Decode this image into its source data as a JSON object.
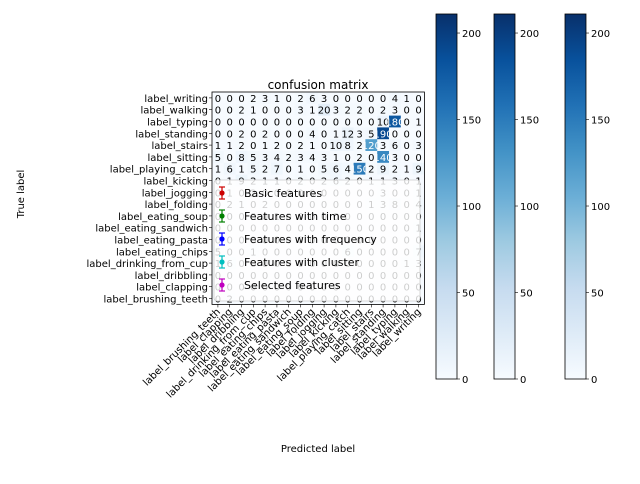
{
  "chart_data": {
    "type": "heatmap",
    "title": "confusion matrix",
    "xlabel": "Predicted label",
    "ylabel": "True label",
    "labels": [
      "label_brushing_teeth",
      "label_clapping",
      "label_dribbling",
      "label_drinking_from_cup",
      "label_eating_chips",
      "label_eating_pasta",
      "label_eating_sandwich",
      "label_eating_soup",
      "label_folding",
      "label_jogging",
      "label_kicking",
      "label_playing_catch",
      "label_sitting",
      "label_stairs",
      "label_standing",
      "label_typing",
      "label_walking",
      "label_writing"
    ],
    "matrix_rows_top_to_bottom": [
      [
        0,
        0,
        0,
        2,
        3,
        1,
        0,
        2,
        6,
        3,
        0,
        0,
        0,
        0,
        0,
        4,
        1,
        0
      ],
      [
        0,
        0,
        2,
        1,
        0,
        0,
        0,
        3,
        1,
        20,
        3,
        2,
        2,
        0,
        2,
        3,
        0,
        0
      ],
      [
        0,
        0,
        0,
        0,
        0,
        0,
        0,
        0,
        0,
        0,
        0,
        0,
        0,
        0,
        10,
        180,
        0,
        1
      ],
      [
        0,
        0,
        2,
        0,
        2,
        0,
        0,
        0,
        4,
        0,
        1,
        12,
        3,
        5,
        190,
        0,
        0,
        0
      ],
      [
        1,
        1,
        2,
        0,
        1,
        2,
        0,
        2,
        1,
        0,
        10,
        8,
        2,
        120,
        3,
        6,
        0,
        3
      ],
      [
        5,
        0,
        8,
        5,
        3,
        4,
        2,
        3,
        4,
        3,
        1,
        0,
        2,
        0,
        140,
        3,
        0,
        0
      ],
      [
        1,
        6,
        1,
        5,
        2,
        7,
        0,
        1,
        0,
        5,
        6,
        4,
        150,
        2,
        9,
        2,
        1,
        9
      ],
      [
        0,
        1,
        9,
        2,
        1,
        1,
        0,
        2,
        0,
        2,
        6,
        2,
        0,
        1,
        1,
        3,
        0,
        1
      ],
      [
        0,
        1,
        0,
        2,
        0,
        0,
        0,
        0,
        0,
        0,
        0,
        0,
        0,
        0,
        3,
        0,
        0,
        1
      ],
      [
        0,
        2,
        1,
        0,
        2,
        0,
        0,
        0,
        0,
        0,
        0,
        0,
        0,
        1,
        3,
        8,
        0,
        4
      ],
      [
        0,
        0,
        0,
        0,
        0,
        1,
        0,
        0,
        0,
        0,
        0,
        0,
        0,
        0,
        0,
        0,
        0,
        0
      ],
      [
        0,
        0,
        0,
        0,
        0,
        0,
        0,
        0,
        0,
        0,
        0,
        0,
        0,
        0,
        0,
        0,
        0,
        1
      ],
      [
        0,
        0,
        0,
        0,
        0,
        0,
        0,
        0,
        0,
        0,
        0,
        0,
        0,
        0,
        0,
        0,
        0,
        0
      ],
      [
        5,
        0,
        0,
        1,
        0,
        0,
        0,
        0,
        0,
        0,
        0,
        6,
        0,
        0,
        0,
        0,
        0,
        7
      ],
      [
        1,
        6,
        0,
        0,
        0,
        0,
        0,
        0,
        0,
        0,
        0,
        0,
        0,
        0,
        0,
        0,
        1,
        3
      ],
      [
        0,
        0,
        0,
        0,
        0,
        0,
        0,
        0,
        0,
        0,
        0,
        0,
        0,
        0,
        0,
        0,
        0,
        0
      ],
      [
        0,
        0,
        0,
        0,
        0,
        0,
        0,
        0,
        0,
        0,
        0,
        0,
        0,
        0,
        0,
        0,
        0,
        0
      ],
      [
        0,
        2,
        0,
        0,
        0,
        0,
        0,
        0,
        0,
        0,
        0,
        0,
        0,
        0,
        0,
        0,
        0,
        0
      ]
    ],
    "legend": {
      "placement": "center",
      "entries": [
        {
          "name": "Basic features",
          "color": "#cc0000"
        },
        {
          "name": "Features with time",
          "color": "#008000"
        },
        {
          "name": "Features with frequency",
          "color": "#0000ff"
        },
        {
          "name": "Features with cluster",
          "color": "#00bfbf"
        },
        {
          "name": "Selected features",
          "color": "#bf00bf"
        }
      ]
    },
    "colorbars": [
      {
        "min": 0,
        "max": 211,
        "ticks": [
          0,
          50,
          100,
          150,
          200
        ],
        "colormap": "Blues"
      },
      {
        "min": 0,
        "max": 211,
        "ticks": [
          0,
          50,
          100,
          150,
          200
        ],
        "colormap": "Blues"
      },
      {
        "min": 0,
        "max": 211,
        "ticks": [
          0,
          50,
          100,
          150,
          200
        ],
        "colormap": "Blues"
      }
    ]
  }
}
